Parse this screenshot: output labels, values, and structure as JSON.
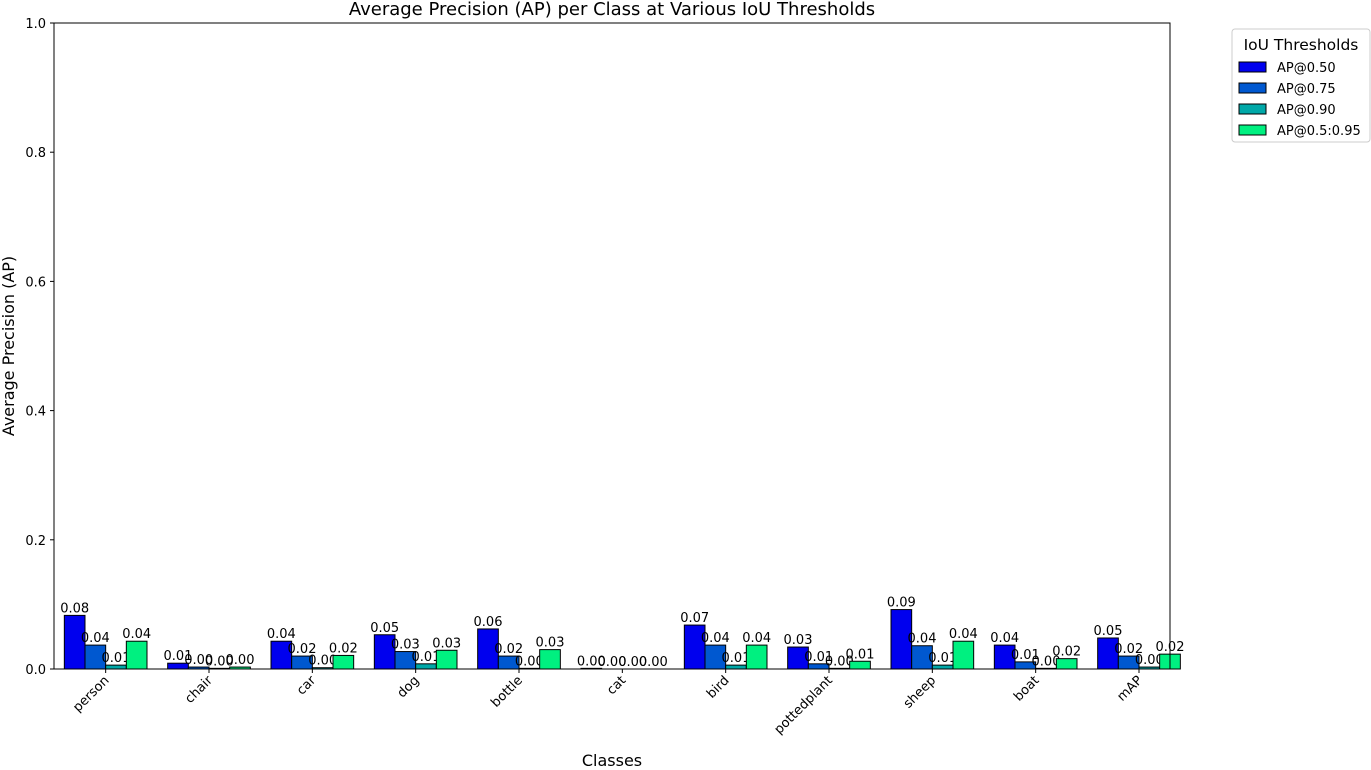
{
  "chart_data": {
    "type": "bar",
    "title": "Average Precision (AP) per Class at Various IoU Thresholds",
    "xlabel": "Classes",
    "ylabel": "Average Precision (AP)",
    "ylim": [
      0,
      1.0
    ],
    "yticks": [
      "0.0",
      "0.2",
      "0.4",
      "0.6",
      "0.8",
      "1.0"
    ],
    "categories": [
      "person",
      "chair",
      "car",
      "dog",
      "bottle",
      "cat",
      "bird",
      "pottedplant",
      "sheep",
      "boat",
      "mAP"
    ],
    "legend_title": "IoU Thresholds",
    "legend_position": "outside top-right",
    "grid": false,
    "series": [
      {
        "name": "AP@0.50",
        "color": "#0000ee",
        "values": [
          0.083,
          0.009,
          0.043,
          0.053,
          0.062,
          0.001,
          0.068,
          0.034,
          0.092,
          0.037,
          0.048
        ],
        "labels": [
          "0.08",
          "0.01",
          "0.04",
          "0.05",
          "0.06",
          "0.00",
          "0.07",
          "0.03",
          "0.09",
          "0.04",
          "0.05"
        ]
      },
      {
        "name": "AP@0.75",
        "color": "#0058d0",
        "values": [
          0.037,
          0.003,
          0.02,
          0.027,
          0.02,
          0.0,
          0.037,
          0.008,
          0.036,
          0.011,
          0.02
        ],
        "labels": [
          "0.04",
          "0.00",
          "0.02",
          "0.03",
          "0.02",
          "0.00",
          "0.04",
          "0.01",
          "0.04",
          "0.01",
          "0.02"
        ]
      },
      {
        "name": "AP@0.90",
        "color": "#00a8a8",
        "values": [
          0.006,
          0.001,
          0.002,
          0.008,
          0.001,
          0.0,
          0.006,
          0.001,
          0.006,
          0.001,
          0.003
        ],
        "labels": [
          "0.01",
          "0.00",
          "0.00",
          "0.01",
          "0.00",
          "0.00",
          "0.01",
          "0.00",
          "0.01",
          "0.00",
          "0.00"
        ]
      },
      {
        "name": "AP@0.5:0.95",
        "color": "#00f080",
        "values": [
          0.043,
          0.003,
          0.021,
          0.029,
          0.03,
          0.0,
          0.037,
          0.012,
          0.043,
          0.016,
          0.023
        ],
        "labels": [
          "0.04",
          "0.00",
          "0.02",
          "0.03",
          "0.03",
          "0.00",
          "0.04",
          "0.01",
          "0.04",
          "0.02",
          "0.02"
        ]
      }
    ]
  }
}
